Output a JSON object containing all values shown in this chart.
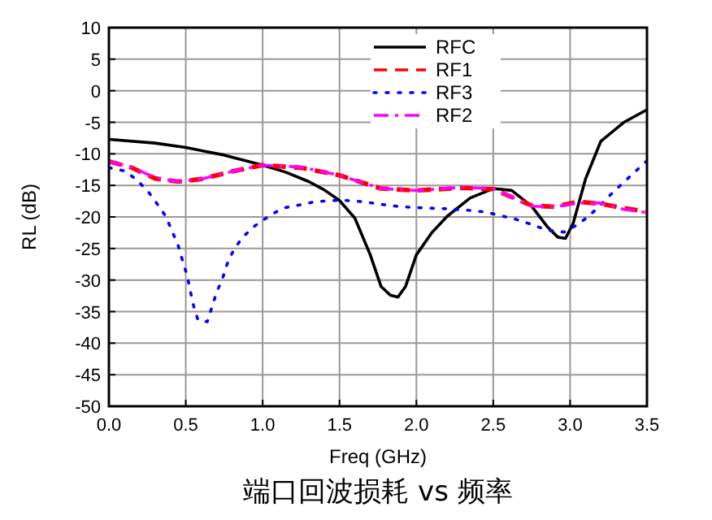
{
  "chart_data": {
    "type": "line",
    "title": "端口回波损耗 vs 频率",
    "xlabel": "Freq (GHz)",
    "ylabel": "RL (dB)",
    "xlim": [
      0,
      3.5
    ],
    "ylim": [
      -50,
      10
    ],
    "xticks": [
      {
        "value": 0,
        "label": "0.0"
      },
      0.5,
      {
        "value": 1,
        "label": "1.0"
      },
      1.5,
      {
        "value": 2,
        "label": "2.0"
      },
      2.5,
      {
        "value": 3,
        "label": "3.0"
      },
      3.5
    ],
    "yticks": [
      -50,
      -45,
      -40,
      -35,
      -30,
      -25,
      -20,
      -15,
      -10,
      -5,
      0,
      5,
      10
    ],
    "grid": true,
    "legend": "top",
    "marker": "none",
    "series": [
      {
        "name": "RFC",
        "color": "#000000",
        "line_style": "solid",
        "x": [
          0,
          0.3,
          0.5,
          0.75,
          1.0,
          1.15,
          1.3,
          1.4,
          1.5,
          1.6,
          1.7,
          1.77,
          1.83,
          1.88,
          1.93,
          2.0,
          2.1,
          2.2,
          2.35,
          2.5,
          2.62,
          2.75,
          2.85,
          2.92,
          2.97,
          3.02,
          3.1,
          3.2,
          3.35,
          3.5
        ],
        "values": [
          -7.7,
          -8.3,
          -9.0,
          -10.2,
          -11.8,
          -12.9,
          -14.4,
          -15.7,
          -17.4,
          -20.2,
          -26,
          -31,
          -32.4,
          -32.7,
          -31,
          -26,
          -22.5,
          -19.9,
          -17,
          -15.5,
          -15.8,
          -18.3,
          -21.5,
          -23.2,
          -23.4,
          -21,
          -14,
          -8,
          -5,
          -3
        ]
      },
      {
        "name": "RF1",
        "color": "#ff0000",
        "line_style": "dashed",
        "x": [
          0,
          0.15,
          0.3,
          0.45,
          0.6,
          0.8,
          1.0,
          1.25,
          1.5,
          1.77,
          2.0,
          2.3,
          2.5,
          2.75,
          2.9,
          3.05,
          3.2,
          3.35,
          3.5
        ],
        "values": [
          -11.2,
          -12.2,
          -13.9,
          -14.4,
          -14,
          -12.8,
          -11.8,
          -12.2,
          -13.4,
          -15.5,
          -15.8,
          -15.4,
          -15.6,
          -18.2,
          -18.4,
          -17.6,
          -17.9,
          -18.6,
          -19.2
        ]
      },
      {
        "name": "RF3",
        "color": "#0000ff",
        "line_style": "dotted",
        "x": [
          0,
          0.1,
          0.17,
          0.25,
          0.31,
          0.37,
          0.41,
          0.45,
          0.48,
          0.51,
          0.53,
          0.55,
          0.58,
          0.64,
          0.67,
          0.7,
          0.74,
          0.77,
          0.81,
          0.87,
          0.95,
          1.04,
          1.13,
          1.24,
          1.34,
          1.45,
          1.55,
          1.66,
          1.77,
          1.87,
          1.98,
          2.08,
          2.19,
          2.32,
          2.44,
          2.55,
          2.65,
          2.75,
          2.85,
          2.96,
          3.05,
          3.12,
          3.19,
          3.27,
          3.34,
          3.42,
          3.5
        ],
        "values": [
          -12.2,
          -12.7,
          -13.9,
          -15.8,
          -17.8,
          -19.9,
          -22.2,
          -24.5,
          -27,
          -29.4,
          -31.8,
          -34,
          -36.4,
          -36.6,
          -34.3,
          -32,
          -29.7,
          -27.4,
          -25.3,
          -23.2,
          -21.4,
          -19.9,
          -18.6,
          -18.1,
          -17.6,
          -17.4,
          -17.4,
          -17.6,
          -18,
          -18.3,
          -18.5,
          -18.6,
          -18.7,
          -18.9,
          -19.2,
          -19.8,
          -20.4,
          -21.2,
          -22.1,
          -22.4,
          -21.2,
          -19.9,
          -18.3,
          -16.3,
          -14.7,
          -12.9,
          -11.1
        ]
      },
      {
        "name": "RF2",
        "color": "#ff00ff",
        "line_style": "dashdot",
        "x": [
          0,
          0.15,
          0.3,
          0.45,
          0.6,
          0.8,
          1.0,
          1.25,
          1.5,
          1.77,
          2.0,
          2.3,
          2.5,
          2.75,
          2.9,
          3.05,
          3.2,
          3.35,
          3.5
        ],
        "values": [
          -11.2,
          -12.1,
          -13.8,
          -14.4,
          -14,
          -12.8,
          -11.8,
          -12.1,
          -13.4,
          -15.5,
          -15.8,
          -15.3,
          -15.5,
          -18.3,
          -18.4,
          -17.8,
          -17.8,
          -18.8,
          -19.3
        ]
      }
    ]
  }
}
